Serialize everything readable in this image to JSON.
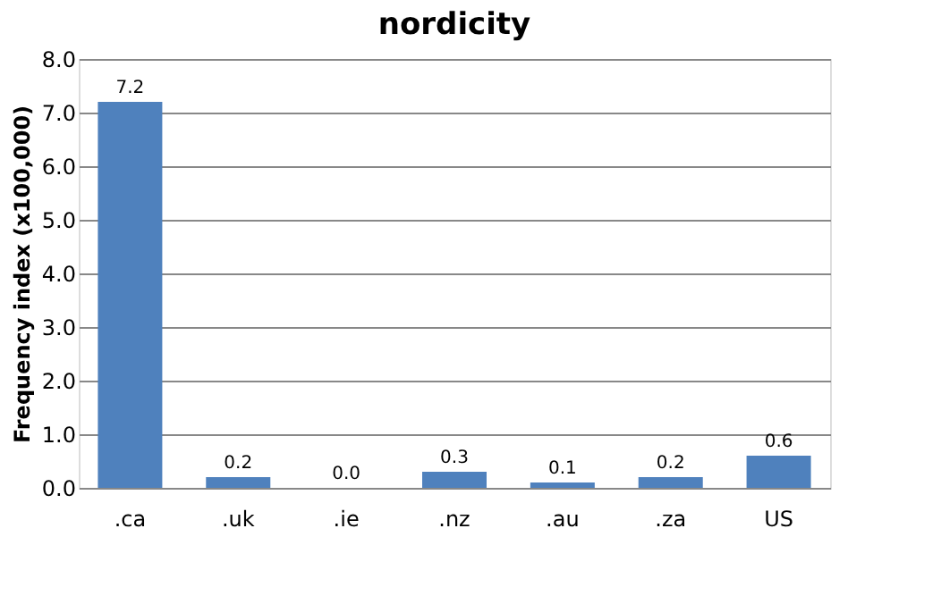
{
  "chart_data": {
    "type": "bar",
    "title": "nordicity",
    "ylabel": "Frequency index (x100,000)",
    "categories": [
      ".ca",
      ".uk",
      ".ie",
      ".nz",
      ".au",
      ".za",
      "US"
    ],
    "values": [
      7.2,
      0.2,
      0.0,
      0.3,
      0.1,
      0.2,
      0.6
    ],
    "color": "#4f81bd",
    "ylim": [
      0,
      8
    ],
    "yticks": [
      {
        "value": 0,
        "label": "0.0"
      },
      {
        "value": 1,
        "label": "1.0"
      },
      {
        "value": 2,
        "label": "2.0"
      },
      {
        "value": 3,
        "label": "3.0"
      },
      {
        "value": 4,
        "label": "4.0"
      },
      {
        "value": 5,
        "label": "5.0"
      },
      {
        "value": 6,
        "label": "6.0"
      },
      {
        "value": 7,
        "label": "7.0"
      },
      {
        "value": 8,
        "label": "8.0"
      }
    ],
    "value_labels": [
      "7.2",
      "0.2",
      "0.0",
      "0.3",
      "0.1",
      "0.2",
      "0.6"
    ],
    "grid": "y"
  }
}
